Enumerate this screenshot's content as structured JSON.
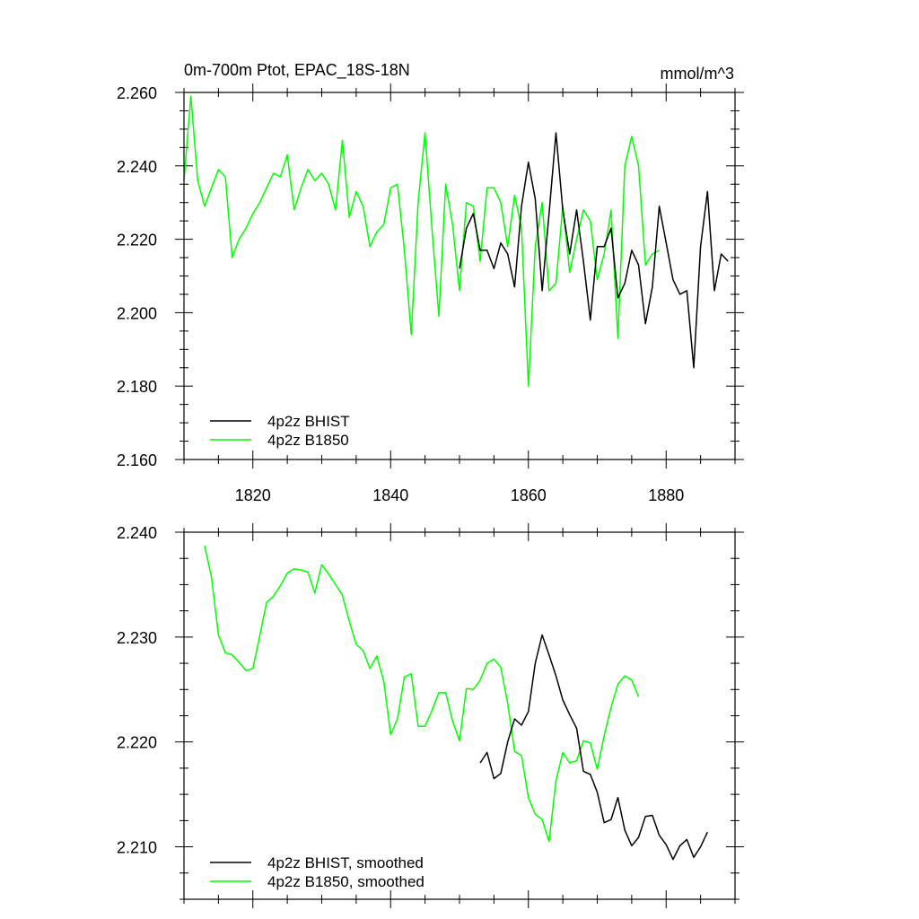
{
  "chart_data": [
    {
      "type": "line",
      "title": "0m-700m Ptot, EPAC_18S-18N",
      "units": "mmol/m^3",
      "xlim": [
        1810,
        1890
      ],
      "ylim": [
        2.16,
        2.26
      ],
      "xticks": [
        1820,
        1840,
        1860,
        1880
      ],
      "xtick_labels": [
        "1820",
        "1840",
        "1860",
        "1880"
      ],
      "yticks": [
        2.16,
        2.18,
        2.2,
        2.22,
        2.24,
        2.26
      ],
      "ytick_labels": [
        "2.160",
        "2.180",
        "2.200",
        "2.220",
        "2.240",
        "2.260"
      ],
      "legend_position": "bottom-left",
      "series": [
        {
          "name": "4p2z BHIST",
          "color": "#000000",
          "x": [
            1850,
            1851,
            1852,
            1853,
            1854,
            1855,
            1856,
            1857,
            1858,
            1859,
            1860,
            1861,
            1862,
            1863,
            1864,
            1865,
            1866,
            1867,
            1868,
            1869,
            1870,
            1871,
            1872,
            1873,
            1874,
            1875,
            1876,
            1877,
            1878,
            1879,
            1880,
            1881,
            1882,
            1883,
            1884,
            1885,
            1886,
            1887,
            1888,
            1889
          ],
          "y": [
            2.212,
            2.223,
            2.227,
            2.217,
            2.217,
            2.212,
            2.219,
            2.216,
            2.207,
            2.229,
            2.241,
            2.231,
            2.206,
            2.227,
            2.249,
            2.228,
            2.216,
            2.228,
            2.214,
            2.198,
            2.218,
            2.218,
            2.223,
            2.204,
            2.208,
            2.217,
            2.213,
            2.197,
            2.207,
            2.229,
            2.219,
            2.209,
            2.205,
            2.206,
            2.185,
            2.218,
            2.233,
            2.206,
            2.216,
            2.214
          ]
        },
        {
          "name": "4p2z B1850",
          "color": "#00ff00",
          "x": [
            1810,
            1811,
            1812,
            1813,
            1814,
            1815,
            1816,
            1817,
            1818,
            1819,
            1820,
            1821,
            1822,
            1823,
            1824,
            1825,
            1826,
            1827,
            1828,
            1829,
            1830,
            1831,
            1832,
            1833,
            1834,
            1835,
            1836,
            1837,
            1838,
            1839,
            1840,
            1841,
            1842,
            1843,
            1844,
            1845,
            1846,
            1847,
            1848,
            1849,
            1850,
            1851,
            1852,
            1853,
            1854,
            1855,
            1856,
            1857,
            1858,
            1859,
            1860,
            1861,
            1862,
            1863,
            1864,
            1865,
            1866,
            1867,
            1868,
            1869,
            1870,
            1871,
            1872,
            1873,
            1874,
            1875,
            1876,
            1877,
            1878,
            1879
          ],
          "y": [
            2.236,
            2.259,
            2.236,
            2.229,
            2.234,
            2.239,
            2.237,
            2.215,
            2.22,
            2.223,
            2.227,
            2.23,
            2.234,
            2.238,
            2.237,
            2.243,
            2.228,
            2.234,
            2.239,
            2.236,
            2.238,
            2.235,
            2.228,
            2.247,
            2.226,
            2.233,
            2.229,
            2.218,
            2.222,
            2.224,
            2.234,
            2.235,
            2.217,
            2.194,
            2.23,
            2.249,
            2.223,
            2.199,
            2.235,
            2.224,
            2.206,
            2.23,
            2.229,
            2.214,
            2.234,
            2.234,
            2.23,
            2.218,
            2.232,
            2.223,
            2.18,
            2.218,
            2.23,
            2.206,
            2.208,
            2.229,
            2.211,
            2.22,
            2.228,
            2.225,
            2.209,
            2.216,
            2.228,
            2.193,
            2.24,
            2.248,
            2.24,
            2.213,
            2.216,
            2.217
          ]
        }
      ]
    },
    {
      "type": "line",
      "title": "",
      "xlim": [
        1810,
        1890
      ],
      "ylim": [
        2.205,
        2.24
      ],
      "xticks": [
        1820,
        1840,
        1860,
        1880
      ],
      "xtick_labels": [],
      "yticks": [
        2.21,
        2.22,
        2.23,
        2.24
      ],
      "ytick_labels": [
        "2.210",
        "2.220",
        "2.230",
        "2.240"
      ],
      "legend_position": "bottom-left",
      "series": [
        {
          "name": "4p2z BHIST, smoothed",
          "color": "#000000",
          "x": [
            1853,
            1854,
            1855,
            1856,
            1857,
            1858,
            1859,
            1860,
            1861,
            1862,
            1863,
            1864,
            1865,
            1866,
            1867,
            1868,
            1869,
            1870,
            1871,
            1872,
            1873,
            1874,
            1875,
            1876,
            1877,
            1878,
            1879,
            1880,
            1881,
            1882,
            1883,
            1884,
            1885,
            1886
          ],
          "y": [
            2.218,
            2.219,
            2.2165,
            2.217,
            2.22,
            2.2222,
            2.2216,
            2.2229,
            2.2275,
            2.2302,
            2.2283,
            2.2263,
            2.224,
            2.2226,
            2.2213,
            2.2172,
            2.2169,
            2.2152,
            2.2123,
            2.2126,
            2.2147,
            2.2116,
            2.2101,
            2.2109,
            2.2129,
            2.213,
            2.2111,
            2.2102,
            2.2088,
            2.2101,
            2.2107,
            2.209,
            2.21,
            2.2114
          ]
        },
        {
          "name": "4p2z B1850, smoothed",
          "color": "#00ff00",
          "x": [
            1813,
            1814,
            1815,
            1816,
            1817,
            1818,
            1819,
            1820,
            1821,
            1822,
            1823,
            1824,
            1825,
            1826,
            1827,
            1828,
            1829,
            1830,
            1831,
            1832,
            1833,
            1834,
            1835,
            1836,
            1837,
            1838,
            1839,
            1840,
            1841,
            1842,
            1843,
            1844,
            1845,
            1846,
            1847,
            1848,
            1849,
            1850,
            1851,
            1852,
            1853,
            1854,
            1855,
            1856,
            1857,
            1858,
            1859,
            1860,
            1861,
            1862,
            1863,
            1864,
            1865,
            1866,
            1867,
            1868,
            1869,
            1870,
            1871,
            1872,
            1873,
            1874,
            1875,
            1876
          ],
          "y": [
            2.2387,
            2.2357,
            2.2302,
            2.2285,
            2.2283,
            2.2276,
            2.2268,
            2.227,
            2.2301,
            2.2333,
            2.2339,
            2.2349,
            2.2361,
            2.2365,
            2.2364,
            2.2362,
            2.2342,
            2.2369,
            2.236,
            2.235,
            2.234,
            2.2315,
            2.2293,
            2.2287,
            2.227,
            2.2282,
            2.2258,
            2.2207,
            2.2222,
            2.2262,
            2.2265,
            2.2215,
            2.2215,
            2.223,
            2.2247,
            2.2247,
            2.222,
            2.2201,
            2.2251,
            2.225,
            2.2259,
            2.2275,
            2.2279,
            2.2271,
            2.2237,
            2.2191,
            2.2187,
            2.2147,
            2.2131,
            2.2126,
            2.2105,
            2.2163,
            2.219,
            2.218,
            2.2182,
            2.2201,
            2.2199,
            2.2174,
            2.2206,
            2.2233,
            2.2255,
            2.2263,
            2.2259,
            2.2243
          ]
        }
      ]
    }
  ]
}
